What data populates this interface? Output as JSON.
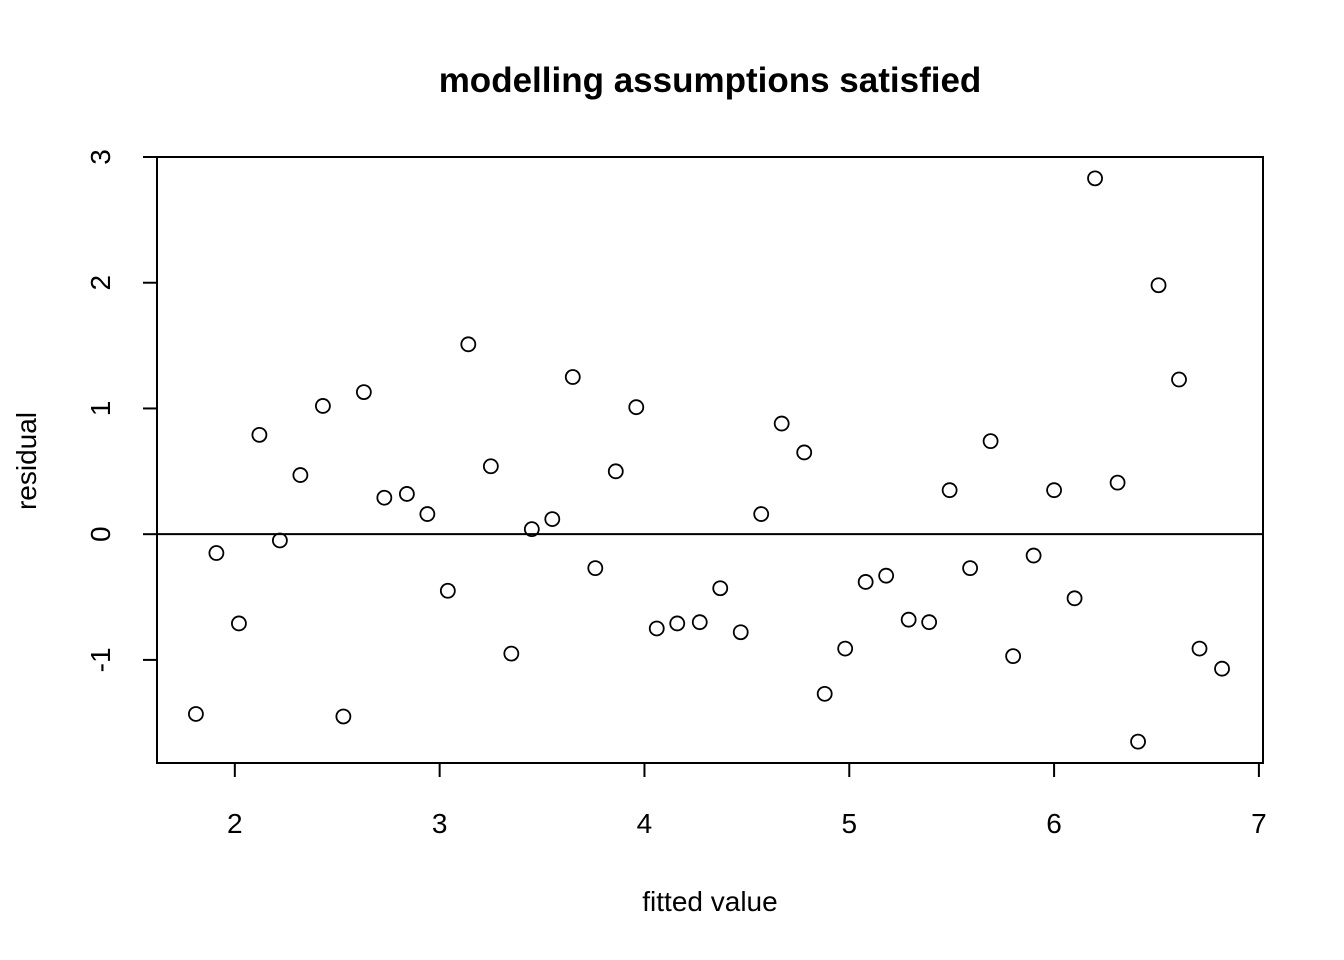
{
  "chart_data": {
    "type": "scatter",
    "title": "modelling assumptions satisfied",
    "xlabel": "fitted value",
    "ylabel": "residual",
    "xlim": [
      1.62,
      7.02
    ],
    "ylim": [
      -1.82,
      3.0
    ],
    "xticks": [
      2,
      3,
      4,
      5,
      6,
      7
    ],
    "yticks": [
      -1,
      0,
      1,
      2,
      3
    ],
    "xtick_labels": [
      "2",
      "3",
      "4",
      "5",
      "6",
      "7"
    ],
    "ytick_labels": [
      "-1",
      "0",
      "1",
      "2",
      "3"
    ],
    "reference_line_y": 0,
    "grid": false,
    "legend": "none",
    "marker": "open-circle",
    "x": [
      1.81,
      1.91,
      2.02,
      2.12,
      2.22,
      2.32,
      2.43,
      2.53,
      2.63,
      2.73,
      2.84,
      2.94,
      3.04,
      3.14,
      3.25,
      3.35,
      3.45,
      3.55,
      3.65,
      3.76,
      3.86,
      3.96,
      4.06,
      4.16,
      4.27,
      4.37,
      4.47,
      4.57,
      4.67,
      4.78,
      4.88,
      4.98,
      5.08,
      5.18,
      5.29,
      5.39,
      5.49,
      5.59,
      5.69,
      5.8,
      5.9,
      6.0,
      6.1,
      6.2,
      6.31,
      6.41,
      6.51,
      6.61,
      6.71,
      6.82
    ],
    "y": [
      -1.43,
      -0.15,
      -0.71,
      0.79,
      -0.05,
      0.47,
      1.02,
      -1.45,
      1.13,
      0.29,
      0.32,
      0.16,
      -0.45,
      1.51,
      0.54,
      -0.95,
      0.04,
      0.12,
      1.25,
      -0.27,
      0.5,
      1.01,
      -0.75,
      -0.71,
      -0.7,
      -0.43,
      -0.78,
      0.16,
      0.88,
      0.65,
      -1.27,
      -0.91,
      -0.38,
      -0.33,
      -0.68,
      -0.7,
      0.35,
      -0.27,
      0.74,
      -0.97,
      -0.17,
      0.35,
      -0.51,
      2.83,
      0.41,
      -1.65,
      1.98,
      1.23,
      -0.91,
      -1.07
    ]
  }
}
